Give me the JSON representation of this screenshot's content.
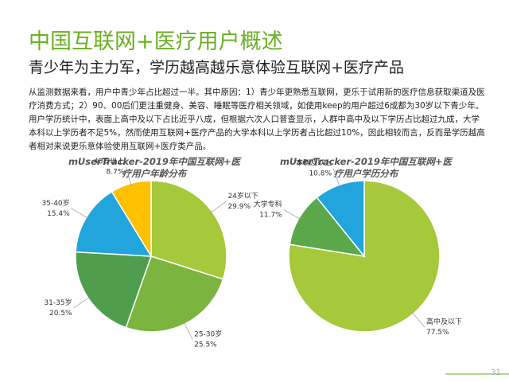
{
  "header": {
    "title": "中国互联网+医疗用户概述",
    "subtitle": "青少年为主力军，学历越高越乐意体验互联网+医疗产品"
  },
  "body": "从监测数据来看，用户中青少年占比超过一半。其中原因：1）青少年更熟悉互联网，更乐于试用新的医疗信息获取渠道及医疗消费方式；2）90、00后们更注重健身、美容、睡眠等医疗相关领域，如使用keep的用户超过6成都为30岁以下青少年。用户学历统计中，表面上高中及以下占比近乎八成，但根据六次人口普查显示，人群中高中及以下学历占比超过九成，大学本科以上学历者不足5%，然而使用互联网+医疗产品的大学本科以上学历者占比超过10%，因此相较而言，反而是学历越高者相对来说更乐意体验使用互联网+医疗类产品。",
  "page_number": "31",
  "chart_data": [
    {
      "type": "pie",
      "title": "mUserTracker-2019年中国互联网+医疗用户年龄分布",
      "categories": [
        "24岁以下",
        "25-30岁",
        "31-35岁",
        "35-40岁",
        "40岁以上"
      ],
      "values": [
        29.9,
        25.5,
        20.5,
        15.4,
        8.7
      ],
      "value_labels": [
        "29.9%",
        "25.5%",
        "20.5%",
        "15.4%",
        "8.7%"
      ],
      "colors": [
        "#a5c93a",
        "#7bb540",
        "#4f9e4d",
        "#22a4dc",
        "#ffc000"
      ]
    },
    {
      "type": "pie",
      "title": "mUserTracker-2019年中国互联网+医疗用户学历分布",
      "categories": [
        "高中及以下",
        "大学专科",
        "本科及以上"
      ],
      "values": [
        77.5,
        11.7,
        10.8
      ],
      "value_labels": [
        "77.5%",
        "11.7%",
        "10.8%"
      ],
      "colors": [
        "#a5c93a",
        "#5aa84a",
        "#22a4dc"
      ]
    }
  ]
}
